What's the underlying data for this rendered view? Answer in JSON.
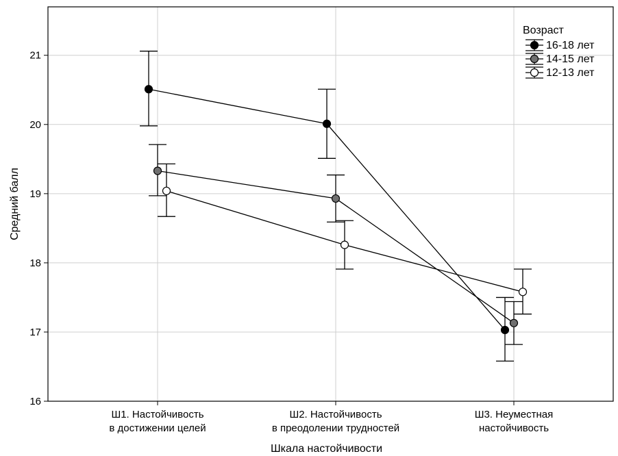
{
  "chart_data": {
    "type": "line",
    "xlabel": "Шкала настойчивости",
    "ylabel": "Средний балл",
    "ylim": [
      16,
      21.7
    ],
    "yticks": [
      16,
      17,
      18,
      19,
      20,
      21
    ],
    "grid": true,
    "categories": [
      [
        "Ш1. Настойчивость",
        "в достижении целей"
      ],
      [
        "Ш2. Настойчивость",
        "в преодолении трудностей"
      ],
      [
        "Ш3. Неуместная",
        "настойчивость"
      ]
    ],
    "legend": {
      "title": "Возраст",
      "position": "top-right"
    },
    "series": [
      {
        "name": "16-18 лет",
        "color": "#000000",
        "values": [
          20.51,
          20.01,
          17.03
        ],
        "err_low": [
          19.98,
          19.51,
          16.58
        ],
        "err_high": [
          21.06,
          20.51,
          17.5
        ]
      },
      {
        "name": "14-15 лет",
        "color": "#707070",
        "values": [
          19.33,
          18.93,
          17.13
        ],
        "err_low": [
          18.97,
          18.59,
          16.82
        ],
        "err_high": [
          19.71,
          19.27,
          17.44
        ]
      },
      {
        "name": "12-13 лет",
        "color": "#ffffff",
        "values": [
          19.04,
          18.26,
          17.58
        ],
        "err_low": [
          18.67,
          17.91,
          17.26
        ],
        "err_high": [
          19.43,
          18.61,
          17.91
        ]
      }
    ]
  }
}
